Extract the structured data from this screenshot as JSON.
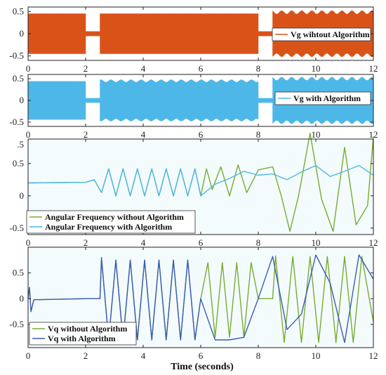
{
  "figure": {
    "xlabel": "Time (seconds)",
    "colors": {
      "orange": "#d95319",
      "cyan": "#4db8e8",
      "green": "#77ac30",
      "blue": "#3a5cb8"
    }
  },
  "chart_data": [
    {
      "type": "area",
      "xlim": [
        0,
        12
      ],
      "ylim": [
        -0.6,
        0.6
      ],
      "xticks": [
        0,
        2,
        4,
        6,
        8,
        10,
        12
      ],
      "yticks": [
        -0.5,
        0,
        0.5
      ],
      "ytick_labels": [
        "-0.5",
        "0",
        "0.5"
      ],
      "legend_position": "right",
      "series": [
        {
          "name": "Vg wihtout Algorithm",
          "color": "#d95319",
          "envelope": [
            {
              "x": [
                0,
                2
              ],
              "amp": 0.45
            },
            {
              "x": [
                2,
                2.5
              ],
              "amp": 0.05
            },
            {
              "x": [
                2.5,
                8
              ],
              "amp": 0.45
            },
            {
              "x": [
                8,
                8.5
              ],
              "amp": 0.05
            },
            {
              "x": [
                8.5,
                12
              ],
              "amp": 0.48,
              "ripple": 0.04
            }
          ]
        }
      ]
    },
    {
      "type": "area",
      "xlim": [
        0,
        12
      ],
      "ylim": [
        -0.6,
        0.6
      ],
      "xticks": [
        0,
        2,
        4,
        6,
        8,
        10,
        12
      ],
      "yticks": [
        -0.5,
        0,
        0.5
      ],
      "ytick_labels": [
        "-0.5",
        "0",
        "0.5"
      ],
      "legend_position": "right",
      "series": [
        {
          "name": "Vg with Algorithm",
          "color": "#4db8e8",
          "envelope": [
            {
              "x": [
                0,
                2
              ],
              "amp": 0.44
            },
            {
              "x": [
                2,
                2.5
              ],
              "amp": 0.05
            },
            {
              "x": [
                2.5,
                8
              ],
              "amp": 0.45,
              "ripple": 0.03
            },
            {
              "x": [
                8,
                8.5
              ],
              "amp": 0.05
            },
            {
              "x": [
                8.5,
                12
              ],
              "amp": 0.5,
              "ripple": 0.04
            }
          ]
        }
      ]
    },
    {
      "type": "line",
      "xlim": [
        0,
        12
      ],
      "ylim": [
        -0.6,
        0.88
      ],
      "xticks": [
        0,
        2,
        4,
        6,
        8,
        10,
        12
      ],
      "yticks": [
        -0.5,
        0,
        0.5
      ],
      "ytick_labels": [
        "-0.5",
        "0",
        "0.5"
      ],
      "top_tick_label": ".5",
      "legend_position": "bottom-left",
      "series": [
        {
          "name": "Angular Frequency without  Algorithm",
          "color": "#77ac30",
          "x": [
            0,
            2,
            2.3,
            2.55,
            2.8,
            3.05,
            3.3,
            3.55,
            3.8,
            4.05,
            4.3,
            4.55,
            4.8,
            5.05,
            5.3,
            5.55,
            5.8,
            6.0,
            6.2,
            6.4,
            6.7,
            7.0,
            7.3,
            7.6,
            8.0,
            8.5,
            8.8,
            9.1,
            9.4,
            9.8,
            10.2,
            10.6,
            11.0,
            11.4,
            11.8,
            12.0
          ],
          "y": [
            0.2,
            0.21,
            0.25,
            0.05,
            0.42,
            0.0,
            0.42,
            0.0,
            0.42,
            0.0,
            0.42,
            0.0,
            0.42,
            0.0,
            0.42,
            0.0,
            0.42,
            0.0,
            0.42,
            0.1,
            0.45,
            0.0,
            0.48,
            0.05,
            0.4,
            0.45,
            0.0,
            -0.55,
            0.0,
            0.97,
            -0.05,
            -0.55,
            0.75,
            -0.45,
            -0.15,
            0.92
          ]
        },
        {
          "name": "Angular Frequency with Algorithm",
          "color": "#4db8e8",
          "x": [
            0,
            2,
            2.3,
            2.55,
            2.8,
            3.05,
            3.3,
            3.55,
            3.8,
            4.05,
            4.3,
            4.55,
            4.8,
            5.05,
            5.3,
            5.55,
            5.8,
            6.0,
            6.5,
            7.0,
            7.5,
            8.0,
            8.5,
            9.0,
            9.5,
            10.0,
            10.5,
            11.0,
            11.5,
            12.0
          ],
          "y": [
            0.2,
            0.21,
            0.25,
            0.05,
            0.42,
            0.0,
            0.42,
            0.0,
            0.42,
            0.0,
            0.42,
            0.0,
            0.42,
            0.0,
            0.42,
            0.0,
            0.42,
            0.0,
            0.18,
            0.27,
            0.38,
            0.32,
            0.34,
            0.25,
            0.37,
            0.47,
            0.3,
            0.38,
            0.47,
            0.32
          ]
        }
      ]
    },
    {
      "type": "line",
      "xlim": [
        0,
        12
      ],
      "ylim": [
        -0.95,
        1.0
      ],
      "xticks": [
        0,
        2,
        4,
        6,
        8,
        10,
        12
      ],
      "yticks": [
        -0.5,
        0,
        0.5
      ],
      "ytick_labels": [
        "-0.5",
        "0",
        "0.5"
      ],
      "legend_position": "bottom-left",
      "series": [
        {
          "name": "Vq without Algorithm",
          "color": "#77ac30",
          "x": [
            0,
            0.05,
            0.1,
            0.2,
            2,
            2.5,
            2.55,
            2.8,
            3.05,
            3.3,
            3.55,
            3.8,
            4.05,
            4.3,
            4.55,
            4.8,
            5.05,
            5.3,
            5.55,
            5.8,
            6.0,
            6.25,
            6.5,
            6.75,
            7.0,
            7.25,
            7.5,
            7.75,
            8.0,
            8.5,
            8.6,
            8.9,
            9.2,
            9.5,
            9.8,
            10.1,
            10.4,
            10.7,
            11.0,
            11.3,
            11.6,
            12.0
          ],
          "y": [
            0.0,
            0.22,
            -0.25,
            -0.02,
            0.0,
            0.0,
            0.78,
            -0.8,
            0.75,
            -0.8,
            0.75,
            -0.8,
            0.75,
            -0.8,
            0.75,
            -0.8,
            0.75,
            -0.8,
            0.75,
            -0.8,
            0.0,
            0.7,
            -0.75,
            0.7,
            -0.75,
            0.7,
            -0.75,
            0.7,
            0.0,
            0.0,
            0.83,
            -0.85,
            0.82,
            -0.85,
            0.82,
            -0.85,
            0.82,
            -0.85,
            0.82,
            -0.85,
            0.82,
            -0.45
          ]
        },
        {
          "name": "Vq with Algorithm",
          "color": "#3a5cb8",
          "x": [
            0,
            0.05,
            0.1,
            0.2,
            2,
            2.5,
            2.55,
            2.8,
            3.05,
            3.3,
            3.55,
            3.8,
            4.05,
            4.3,
            4.55,
            4.8,
            5.05,
            5.3,
            5.55,
            5.8,
            6.0,
            6.5,
            7.0,
            7.5,
            8.0,
            8.5,
            9.0,
            9.5,
            10.0,
            10.5,
            11.0,
            11.5,
            12.0
          ],
          "y": [
            0.0,
            0.22,
            -0.25,
            -0.02,
            0.0,
            0.0,
            0.8,
            -0.8,
            0.75,
            -0.8,
            0.75,
            -0.8,
            0.75,
            -0.8,
            0.75,
            -0.8,
            0.75,
            -0.8,
            0.75,
            -0.8,
            0.0,
            -0.8,
            -0.8,
            -0.75,
            0.0,
            0.82,
            -0.6,
            -0.3,
            0.85,
            0.3,
            -0.85,
            0.85,
            0.38
          ]
        }
      ]
    }
  ]
}
